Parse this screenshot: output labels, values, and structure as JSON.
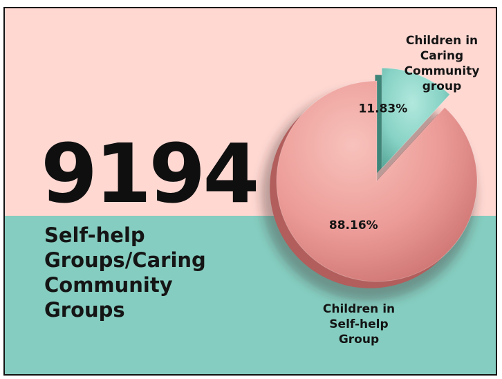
{
  "headline": {
    "number": "9194",
    "subtitle_lines": [
      "Self-help",
      "Groups/Caring",
      "Community",
      "Groups"
    ]
  },
  "colors": {
    "top_background": "#ffd8d2",
    "bottom_background": "#85cdc0",
    "slice_self_help": "#ec9b97",
    "slice_caring": "#86d2c4",
    "text": "#141414"
  },
  "chart_data": {
    "type": "pie",
    "style": "3d exploded",
    "slices": [
      {
        "name_lines": [
          "Children in",
          "Caring",
          "Community",
          "group"
        ],
        "value": 11.83,
        "label": "11.83%",
        "color": "#86d2c4"
      },
      {
        "name_lines": [
          "Children in",
          "Self-help",
          "Group"
        ],
        "value": 88.16,
        "label": "88.16%",
        "color": "#ec9b97"
      }
    ]
  }
}
